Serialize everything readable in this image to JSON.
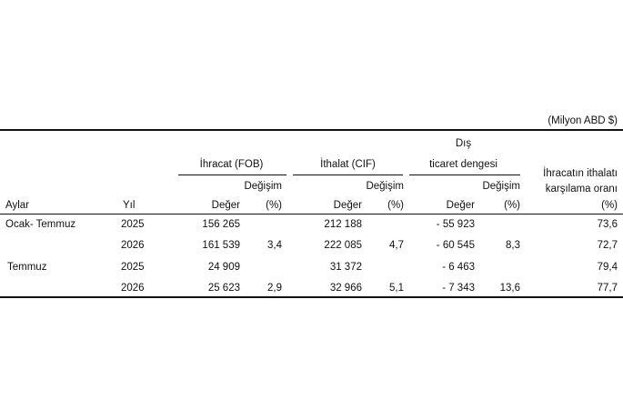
{
  "unit_note": "(Milyon ABD $)",
  "groups": {
    "exports": "İhracat (FOB)",
    "imports": "İthalat (CIF)",
    "balance_line1": "Dış",
    "balance_line2": "ticaret dengesi",
    "coverage_line1": "İhracatın ithalatı",
    "coverage_line2": "karşılama oranı"
  },
  "headers": {
    "aylar": "Aylar",
    "yil": "Yıl",
    "deger": "Değer",
    "degisim": "Değişim",
    "pct": "(%)"
  },
  "rows": [
    {
      "period": "Ocak- Temmuz",
      "year": "2025",
      "exp_value": "156 265",
      "exp_change": "",
      "imp_value": "212 188",
      "imp_change": "",
      "bal_value": "- 55 923",
      "bal_change": "",
      "coverage": "73,6"
    },
    {
      "period": "",
      "year": "2026",
      "exp_value": "161 539",
      "exp_change": "3,4",
      "imp_value": "222 085",
      "imp_change": "4,7",
      "bal_value": "- 60 545",
      "bal_change": "8,3",
      "coverage": "72,7"
    },
    {
      "period": "Temmuz",
      "year": "2025",
      "exp_value": "24 909",
      "exp_change": "",
      "imp_value": "31 372",
      "imp_change": "",
      "bal_value": "- 6 463",
      "bal_change": "",
      "coverage": "79,4"
    },
    {
      "period": "",
      "year": "2026",
      "exp_value": "25 623",
      "exp_change": "2,9",
      "imp_value": "32 966",
      "imp_change": "5,1",
      "bal_value": "- 7 343",
      "bal_change": "13,6",
      "coverage": "77,7"
    }
  ]
}
